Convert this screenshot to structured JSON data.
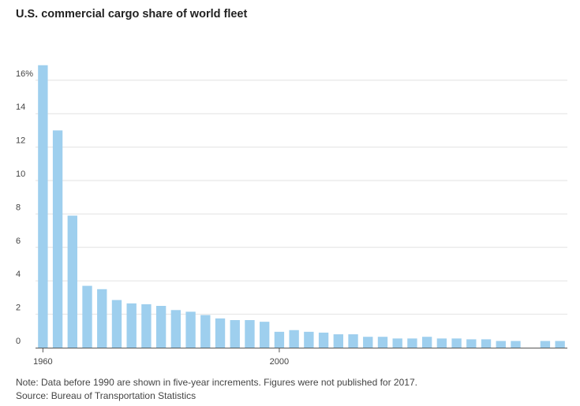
{
  "chart_data": {
    "type": "bar",
    "title": "U.S. commercial cargo share of world fleet",
    "xlabel": "",
    "ylabel": "",
    "ylim": [
      0,
      17.5
    ],
    "yticks": [
      0,
      2,
      4,
      6,
      8,
      10,
      12,
      14,
      16
    ],
    "ytick_labels": [
      "0",
      "2",
      "4",
      "6",
      "8",
      "10",
      "12",
      "14",
      "16%"
    ],
    "xtick_labels": [
      "1960",
      "2000"
    ],
    "bar_color": "#9ecfee",
    "categories": [
      "1960",
      "1965",
      "1970",
      "1975",
      "1980",
      "1985",
      "1990",
      "1991",
      "1992",
      "1993",
      "1994",
      "1995",
      "1996",
      "1997",
      "1998",
      "1999",
      "2000",
      "2001",
      "2002",
      "2003",
      "2004",
      "2005",
      "2006",
      "2007",
      "2008",
      "2009",
      "2010",
      "2011",
      "2012",
      "2013",
      "2014",
      "2015",
      "2016",
      "2017",
      "2018",
      "2019"
    ],
    "values": [
      16.9,
      13.0,
      7.9,
      3.7,
      3.5,
      2.85,
      2.65,
      2.6,
      2.5,
      2.25,
      2.15,
      1.95,
      1.75,
      1.65,
      1.65,
      1.55,
      0.95,
      1.05,
      0.95,
      0.9,
      0.8,
      0.8,
      0.65,
      0.65,
      0.55,
      0.55,
      0.65,
      0.55,
      0.55,
      0.5,
      0.5,
      0.4,
      0.4,
      null,
      0.4,
      0.4
    ]
  },
  "footer": {
    "note": "Note: Data before 1990 are shown in five-year increments. Figures were not published for 2017.",
    "source": "Source: Bureau of Transportation Statistics"
  }
}
